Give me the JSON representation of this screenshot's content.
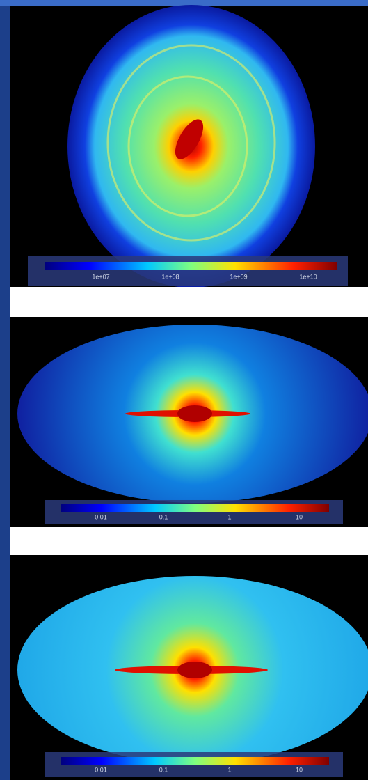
{
  "panels": [
    {
      "colorbar": {
        "labels": [
          "1e+07",
          "1e+08",
          "1e+09",
          "1e+10"
        ]
      }
    },
    {
      "colorbar": {
        "labels": [
          "0.01",
          "0.1",
          "1",
          "10"
        ]
      }
    },
    {
      "colorbar": {
        "labels": [
          "0.01",
          "0.1",
          "1",
          "10"
        ]
      }
    }
  ]
}
